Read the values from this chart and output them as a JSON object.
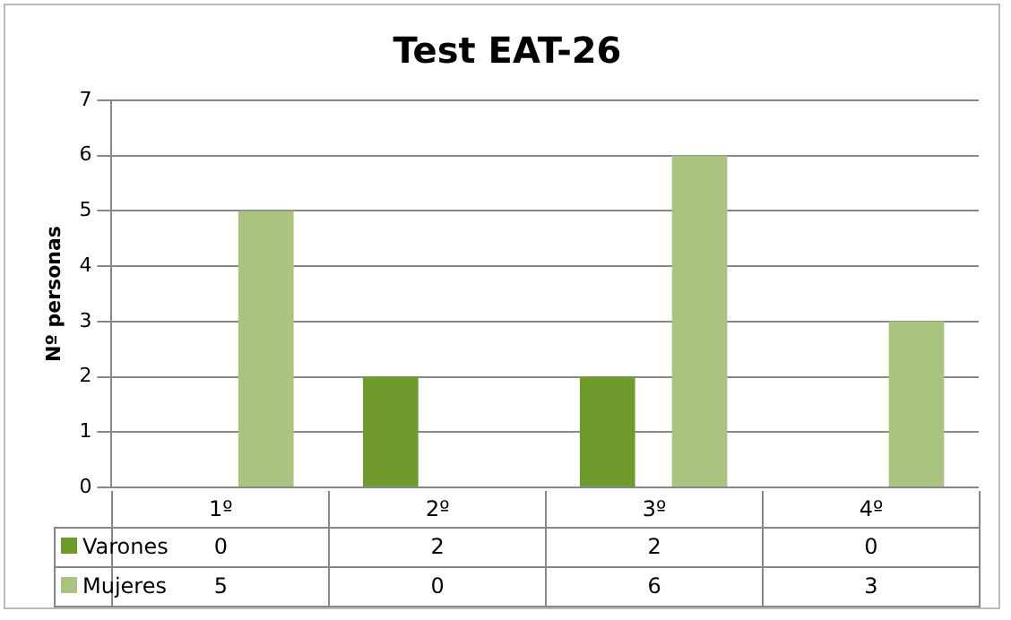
{
  "chart_data": {
    "type": "bar",
    "title": "Test EAT-26",
    "ylabel": "Nº personas",
    "categories": [
      "1º",
      "2º",
      "3º",
      "4º"
    ],
    "series": [
      {
        "name": "Varones",
        "color": "#6f9a2c",
        "values": [
          0,
          2,
          2,
          0
        ]
      },
      {
        "name": "Mujeres",
        "color": "#a9c47f",
        "values": [
          5,
          0,
          6,
          3
        ]
      }
    ],
    "ylim": [
      0,
      7
    ],
    "yticks": [
      0,
      1,
      2,
      3,
      4,
      5,
      6,
      7
    ],
    "grid": "y",
    "legend": "bottom left",
    "data_labels": true
  }
}
